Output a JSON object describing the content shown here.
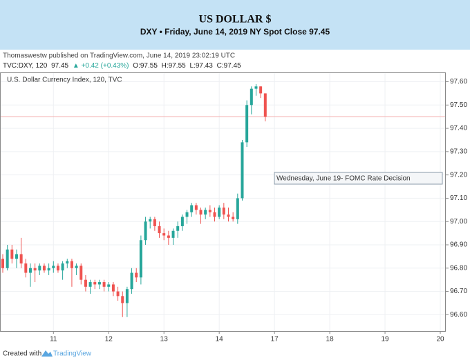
{
  "header": {
    "title": "US DOLLAR $",
    "subtitle": "DXY • Friday, June 14, 2019 NY Spot Close 97.45"
  },
  "published": "Thomaswestw published on TradingView.com, June 14, 2019 23:02:19 UTC",
  "info": {
    "symbol": "TVC:DXY, 120",
    "last": "97.45",
    "change": "▲ +0.42 (+0.43%)",
    "open": "O:97.55",
    "high": "H:97.55",
    "low": "L:97.43",
    "close": "C:97.45"
  },
  "footer": {
    "created": "Created with",
    "brand": "TradingView"
  },
  "chart_data": {
    "type": "candlestick",
    "legend": "U.S. Dollar Currency Index, 120, TVC",
    "annotation": "Wednesday, June 19- FOMC Rate Decision",
    "price_line": 97.45,
    "price_line_color": "#f4a9a9",
    "up_color": "#26a69a",
    "down_color": "#ef5350",
    "x": [
      1,
      2,
      3,
      4,
      5,
      6,
      7,
      8,
      9,
      10,
      11,
      12,
      13,
      14,
      15,
      16,
      17,
      18,
      19,
      20,
      21,
      22,
      23,
      24,
      25,
      26,
      27,
      28,
      29,
      30,
      31,
      32,
      33,
      34,
      35,
      36,
      37,
      38,
      39,
      40,
      41,
      42,
      43,
      44,
      45,
      46,
      47,
      48,
      49,
      50,
      51,
      52,
      53,
      54,
      55,
      56,
      57,
      58
    ],
    "open": [
      96.84,
      96.8,
      96.88,
      96.84,
      96.86,
      96.82,
      96.78,
      96.8,
      96.79,
      96.81,
      96.79,
      96.8,
      96.81,
      96.79,
      96.82,
      96.83,
      96.8,
      96.81,
      96.75,
      96.72,
      96.74,
      96.73,
      96.74,
      96.72,
      96.73,
      96.7,
      96.68,
      96.65,
      96.71,
      96.78,
      96.76,
      96.92,
      97.0,
      97.01,
      96.98,
      96.95,
      96.94,
      96.93,
      96.96,
      96.98,
      97.02,
      97.04,
      97.07,
      97.05,
      97.03,
      97.05,
      97.04,
      97.02,
      97.06,
      97.03,
      97.02,
      97.01,
      97.1,
      97.34,
      97.5,
      97.57,
      97.58,
      97.55
    ],
    "high": [
      96.86,
      96.9,
      96.9,
      96.88,
      96.93,
      96.84,
      96.82,
      96.82,
      96.82,
      96.82,
      96.82,
      96.83,
      96.82,
      96.83,
      96.84,
      96.84,
      96.82,
      96.82,
      96.77,
      96.75,
      96.75,
      96.75,
      96.75,
      96.74,
      96.74,
      96.72,
      96.7,
      96.72,
      96.8,
      96.8,
      96.94,
      97.02,
      97.02,
      97.02,
      97.0,
      96.97,
      96.96,
      96.97,
      97.0,
      97.03,
      97.05,
      97.08,
      97.08,
      97.06,
      97.06,
      97.07,
      97.06,
      97.07,
      97.08,
      97.06,
      97.04,
      97.12,
      97.35,
      97.52,
      97.58,
      97.59,
      97.58,
      97.55
    ],
    "low": [
      96.78,
      96.79,
      96.82,
      96.8,
      96.8,
      96.76,
      96.72,
      96.74,
      96.77,
      96.78,
      96.77,
      96.78,
      96.78,
      96.75,
      96.8,
      96.72,
      96.77,
      96.73,
      96.7,
      96.69,
      96.71,
      96.71,
      96.7,
      96.7,
      96.68,
      96.66,
      96.59,
      96.59,
      96.69,
      96.74,
      96.73,
      96.9,
      96.97,
      96.96,
      96.93,
      96.92,
      96.9,
      96.9,
      96.93,
      96.96,
      96.99,
      97.02,
      97.03,
      96.99,
      97.01,
      97.02,
      97.0,
      97.01,
      97.01,
      97.0,
      97.0,
      96.99,
      97.09,
      97.32,
      97.46,
      97.54,
      97.53,
      97.43
    ],
    "close": [
      96.8,
      96.88,
      96.84,
      96.86,
      96.82,
      96.78,
      96.8,
      96.79,
      96.81,
      96.79,
      96.8,
      96.81,
      96.79,
      96.82,
      96.83,
      96.8,
      96.81,
      96.75,
      96.72,
      96.74,
      96.73,
      96.74,
      96.72,
      96.73,
      96.7,
      96.68,
      96.65,
      96.71,
      96.78,
      96.76,
      96.92,
      97.0,
      97.01,
      96.98,
      96.95,
      96.94,
      96.93,
      96.96,
      96.98,
      97.02,
      97.04,
      97.07,
      97.05,
      97.03,
      97.05,
      97.04,
      97.02,
      97.06,
      97.03,
      97.02,
      97.01,
      97.1,
      97.34,
      97.5,
      97.57,
      97.58,
      97.55,
      97.45
    ],
    "xlim": [
      0.4,
      97.2
    ],
    "xticks": [
      {
        "value": 12,
        "label": "11"
      },
      {
        "value": 24,
        "label": "12"
      },
      {
        "value": 36,
        "label": "13"
      },
      {
        "value": 48,
        "label": "14"
      },
      {
        "value": 60,
        "label": "17"
      },
      {
        "value": 72,
        "label": "18"
      },
      {
        "value": 84,
        "label": "19"
      },
      {
        "value": 96,
        "label": "20"
      }
    ],
    "ylim": [
      96.53,
      97.64
    ],
    "yticks": [
      {
        "value": 96.6,
        "label": "96.60"
      },
      {
        "value": 96.7,
        "label": "96.70"
      },
      {
        "value": 96.8,
        "label": "96.80"
      },
      {
        "value": 96.9,
        "label": "96.90"
      },
      {
        "value": 97.0,
        "label": "97.00"
      },
      {
        "value": 97.1,
        "label": "97.10"
      },
      {
        "value": 97.2,
        "label": "97.20"
      },
      {
        "value": 97.3,
        "label": "97.30"
      },
      {
        "value": 97.4,
        "label": "97.40"
      },
      {
        "value": 97.5,
        "label": "97.50"
      },
      {
        "value": 97.6,
        "label": "97.60"
      }
    ],
    "grid": true
  }
}
